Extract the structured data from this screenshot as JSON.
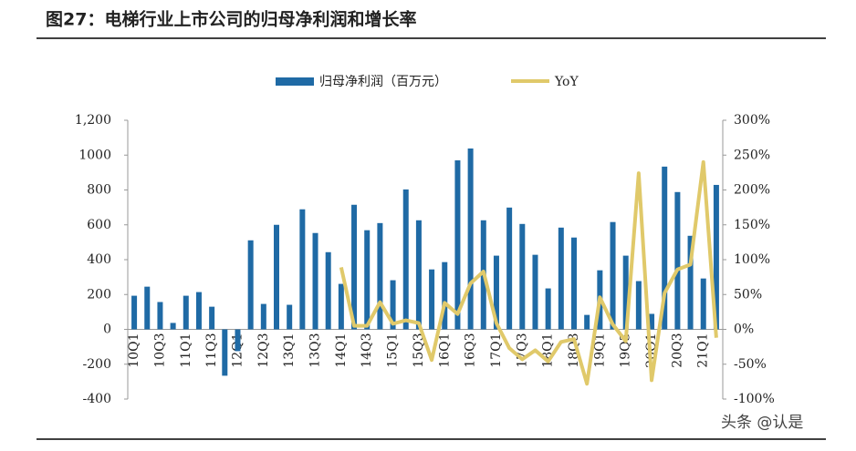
{
  "chart_data": {
    "type": "bar",
    "title": "图27：电梯行业上市公司的归母净利润和增长率",
    "categories": [
      "10Q1",
      null,
      "10Q3",
      null,
      "11Q1",
      null,
      "11Q3",
      null,
      "12Q1",
      null,
      "12Q3",
      null,
      "13Q1",
      null,
      "13Q3",
      null,
      "14Q1",
      null,
      "14Q3",
      null,
      "15Q1",
      null,
      "15Q3",
      null,
      "16Q1",
      null,
      "16Q3",
      null,
      "17Q1",
      null,
      "17Q3",
      null,
      "18Q1",
      null,
      "18Q3",
      null,
      "19Q1",
      null,
      "19Q3",
      null,
      "20Q1",
      null,
      "20Q3",
      null,
      "21Q1",
      null
    ],
    "series": [
      {
        "name": "归母净利润（百万元）",
        "type": "bar",
        "color": "#1f6aa5",
        "values": [
          193,
          245,
          157,
          37,
          193,
          214,
          130,
          -266,
          -125,
          511,
          146,
          600,
          141,
          689,
          553,
          443,
          261,
          715,
          569,
          610,
          282,
          803,
          626,
          344,
          386,
          970,
          1038,
          626,
          423,
          699,
          605,
          428,
          235,
          584,
          527,
          83,
          339,
          616,
          423,
          277,
          89,
          934,
          788,
          537,
          292,
          829
        ]
      },
      {
        "name": "YoY",
        "type": "line",
        "axis": "y2",
        "color": "#e0c96a",
        "values": [
          null,
          null,
          null,
          null,
          null,
          null,
          null,
          null,
          null,
          null,
          null,
          null,
          null,
          null,
          null,
          null,
          89,
          5,
          5,
          39,
          8,
          13,
          9,
          -44,
          38,
          22,
          66,
          83,
          9,
          -27,
          -43,
          -30,
          -46,
          -18,
          -14,
          -78,
          46,
          7,
          -17,
          224,
          -73,
          52,
          86,
          93,
          240,
          -12
        ]
      }
    ],
    "ylim": [
      -400,
      1200
    ],
    "yticks": [
      -400,
      -200,
      0,
      200,
      400,
      600,
      800,
      1000,
      {
        "value": 1200,
        "label": "1,200"
      }
    ],
    "y2lim": [
      -100,
      300
    ],
    "y2ticks": [
      {
        "value": -100,
        "label": "-100%"
      },
      {
        "value": -50,
        "label": "-50%"
      },
      {
        "value": 0,
        "label": "0%"
      },
      {
        "value": 50,
        "label": "50%"
      },
      {
        "value": 100,
        "label": "100%"
      },
      {
        "value": 150,
        "label": "150%"
      },
      {
        "value": 200,
        "label": "200%"
      },
      {
        "value": 250,
        "label": "250%"
      },
      {
        "value": 300,
        "label": "300%"
      }
    ],
    "watermark": "头条 @认是"
  }
}
